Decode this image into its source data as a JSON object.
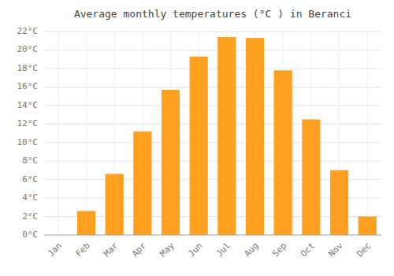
{
  "chart_data": {
    "type": "bar",
    "title": "Average monthly temperatures (°C ) in Beranci",
    "categories": [
      "Jan",
      "Feb",
      "Mar",
      "Apr",
      "May",
      "Jun",
      "Jul",
      "Aug",
      "Sep",
      "Oct",
      "Nov",
      "Dec"
    ],
    "values": [
      0.0,
      2.6,
      6.6,
      11.2,
      15.7,
      19.3,
      21.4,
      21.3,
      17.8,
      12.5,
      7.0,
      2.0
    ],
    "color": "#FFA020",
    "ylim": [
      0,
      22
    ],
    "yticks": [
      {
        "value": 0,
        "label": "0°C"
      },
      {
        "value": 2,
        "label": "2°C"
      },
      {
        "value": 4,
        "label": "4°C"
      },
      {
        "value": 6,
        "label": "6°C"
      },
      {
        "value": 8,
        "label": "8°C"
      },
      {
        "value": 10,
        "label": "10°C"
      },
      {
        "value": 12,
        "label": "12°C"
      },
      {
        "value": 14,
        "label": "14°C"
      },
      {
        "value": 16,
        "label": "16°C"
      },
      {
        "value": 18,
        "label": "18°C"
      },
      {
        "value": 20,
        "label": "20°C"
      },
      {
        "value": 22,
        "label": "22°C"
      }
    ],
    "grid": true
  }
}
